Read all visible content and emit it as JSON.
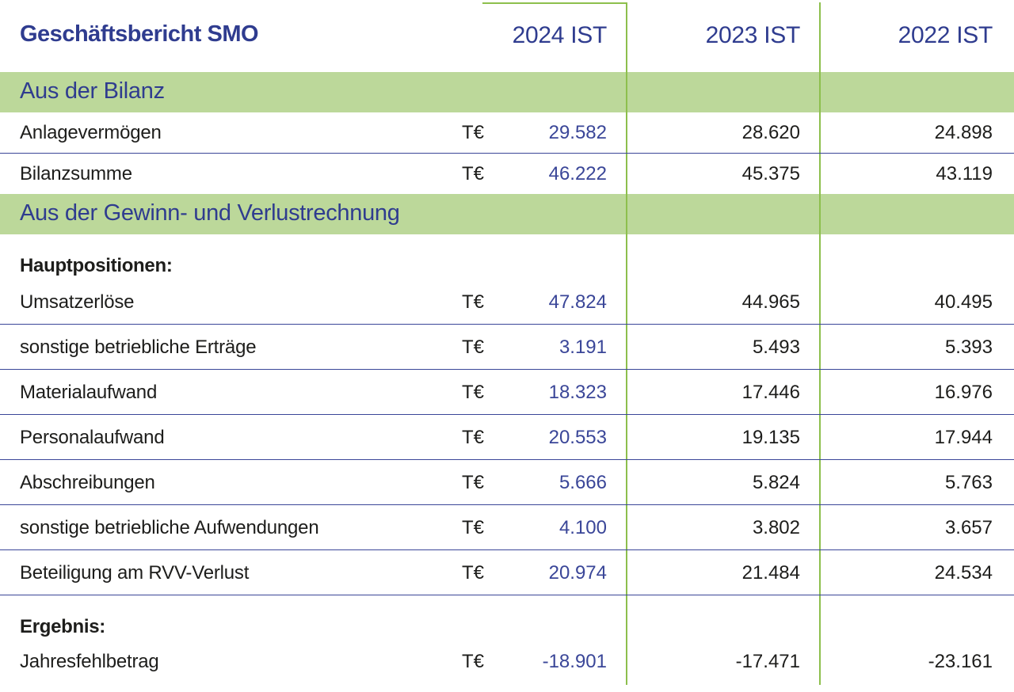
{
  "title": "Geschäftsbericht SMO",
  "columns": [
    "2024 IST",
    "2023 IST",
    "2022 IST"
  ],
  "sections": {
    "bilanz": {
      "title": "Aus der Bilanz",
      "rows": [
        {
          "label": "Anlagevermögen",
          "unit": "T€",
          "values": [
            "29.582",
            "28.620",
            "24.898"
          ]
        },
        {
          "label": "Bilanzsumme",
          "unit": "T€",
          "values": [
            "46.222",
            "45.375",
            "43.119"
          ]
        }
      ]
    },
    "guv": {
      "title": "Aus der Gewinn- und Verlustrechnung",
      "subheading_main": "Hauptpositionen:",
      "rows": [
        {
          "label": "Umsatzerlöse",
          "unit": "T€",
          "values": [
            "47.824",
            "44.965",
            "40.495"
          ]
        },
        {
          "label": "sonstige betriebliche Erträge",
          "unit": "T€",
          "values": [
            "3.191",
            "5.493",
            "5.393"
          ]
        },
        {
          "label": "Materialaufwand",
          "unit": "T€",
          "values": [
            "18.323",
            "17.446",
            "16.976"
          ]
        },
        {
          "label": "Personalaufwand",
          "unit": "T€",
          "values": [
            "20.553",
            "19.135",
            "17.944"
          ]
        },
        {
          "label": "Abschreibungen",
          "unit": "T€",
          "values": [
            "5.666",
            "5.824",
            "5.763"
          ]
        },
        {
          "label": "sonstige betriebliche Aufwendungen",
          "unit": "T€",
          "values": [
            "4.100",
            "3.802",
            "3.657"
          ]
        },
        {
          "label": "Beteiligung am RVV-Verlust",
          "unit": "T€",
          "values": [
            "20.974",
            "21.484",
            "24.534"
          ]
        }
      ],
      "subheading_result": "Ergebnis:",
      "result_row": {
        "label": "Jahresfehlbetrag",
        "unit": "T€",
        "values": [
          "-18.901",
          "-17.471",
          "-23.161"
        ]
      }
    }
  },
  "colors": {
    "accent_blue": "#2f3c8f",
    "value_blue": "#3a4698",
    "band_green": "#bcd89a",
    "line_green": "#8dbf4d"
  }
}
